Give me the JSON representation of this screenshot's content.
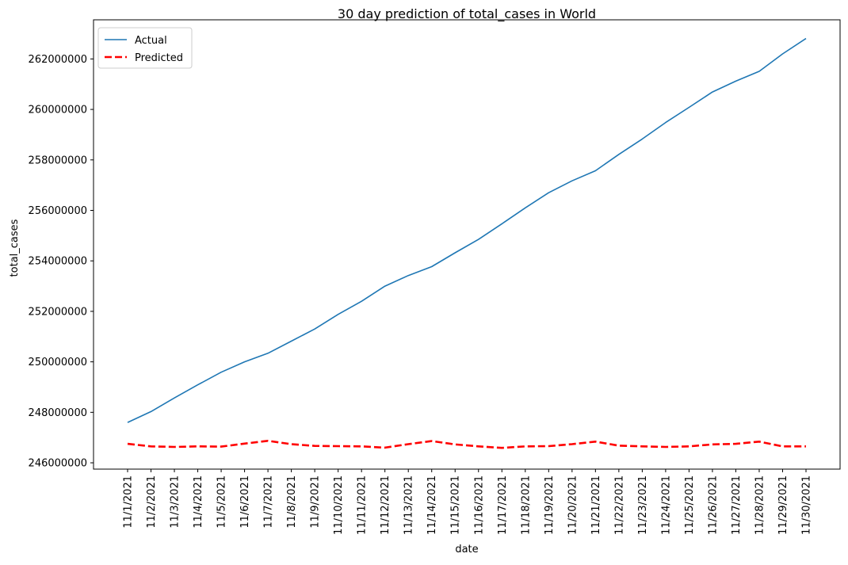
{
  "chart_data": {
    "type": "line",
    "title": "30 day prediction of total_cases in World",
    "xlabel": "date",
    "ylabel": "total_cases",
    "x": [
      "11/1/2021",
      "11/2/2021",
      "11/3/2021",
      "11/4/2021",
      "11/5/2021",
      "11/6/2021",
      "11/7/2021",
      "11/8/2021",
      "11/9/2021",
      "11/10/2021",
      "11/11/2021",
      "11/12/2021",
      "11/13/2021",
      "11/14/2021",
      "11/15/2021",
      "11/16/2021",
      "11/17/2021",
      "11/18/2021",
      "11/19/2021",
      "11/20/2021",
      "11/21/2021",
      "11/22/2021",
      "11/23/2021",
      "11/24/2021",
      "11/25/2021",
      "11/26/2021",
      "11/27/2021",
      "11/28/2021",
      "11/29/2021",
      "11/30/2021"
    ],
    "y_ticks": [
      246000000,
      248000000,
      250000000,
      252000000,
      254000000,
      256000000,
      258000000,
      260000000,
      262000000
    ],
    "y_tick_labels": [
      "246000000",
      "248000000",
      "250000000",
      "252000000",
      "254000000",
      "256000000",
      "258000000",
      "260000000",
      "262000000"
    ],
    "ylim": [
      245750000,
      263550000
    ],
    "grid": false,
    "legend_position": "top-left",
    "series": [
      {
        "name": "Actual",
        "color": "#1f77b4",
        "style": "solid",
        "values": [
          247600000,
          248030000,
          248570000,
          249090000,
          249590000,
          250000000,
          250340000,
          250820000,
          251300000,
          251880000,
          252400000,
          253000000,
          253420000,
          253770000,
          254320000,
          254850000,
          255470000,
          256100000,
          256700000,
          257170000,
          257570000,
          258220000,
          258830000,
          259480000,
          260080000,
          260690000,
          261120000,
          261510000,
          262200000,
          262810000
        ]
      },
      {
        "name": "Predicted",
        "color": "#ff0000",
        "style": "dashed",
        "values": [
          246750000,
          246650000,
          246630000,
          246650000,
          246640000,
          246760000,
          246870000,
          246740000,
          246670000,
          246660000,
          246650000,
          246600000,
          246740000,
          246860000,
          246730000,
          246650000,
          246590000,
          246650000,
          246660000,
          246740000,
          246840000,
          246680000,
          246650000,
          246630000,
          246650000,
          246730000,
          246750000,
          246840000,
          246650000,
          246650000
        ]
      }
    ]
  }
}
